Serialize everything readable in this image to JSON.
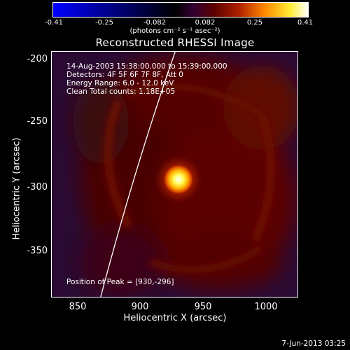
{
  "colorbar": {
    "ticks": [
      "-0.41",
      "-0.25",
      "-0.082",
      "0.082",
      "0.25",
      "0.41"
    ],
    "units": "(photons cm⁻² s⁻¹ asec⁻²)",
    "colors": [
      "#0000ff",
      "#000000",
      "#330033",
      "#5a0000",
      "#b02000",
      "#ff8800",
      "#ffee33",
      "#ffffff"
    ]
  },
  "plot": {
    "title": "Reconstructed RHESSI Image",
    "info_lines": [
      "14-Aug-2003 15:38:00.000 to 15:39:00.000",
      "Detectors: 4F 5F 6F 7F 8F, Att 0",
      "Energy Range: 6.0 - 12.0 keV",
      "Clean      Total counts: 1.18E+05"
    ],
    "peak_label": "Position of Peak = [930,-296]",
    "x_axis": {
      "label": "Heliocentric X (arcsec)",
      "ticks": [
        "850",
        "900",
        "950",
        "1000"
      ],
      "range": [
        830,
        1025
      ]
    },
    "y_axis": {
      "label": "Heliocentric Y (arcsec)",
      "ticks": [
        "-200",
        "-250",
        "-300",
        "-350"
      ],
      "range": [
        -390,
        -195
      ]
    },
    "peak": {
      "x": 930,
      "y": -296
    },
    "background_color": "#2a0a33"
  },
  "footer": {
    "timestamp": "7-Jun-2013 03:25"
  }
}
